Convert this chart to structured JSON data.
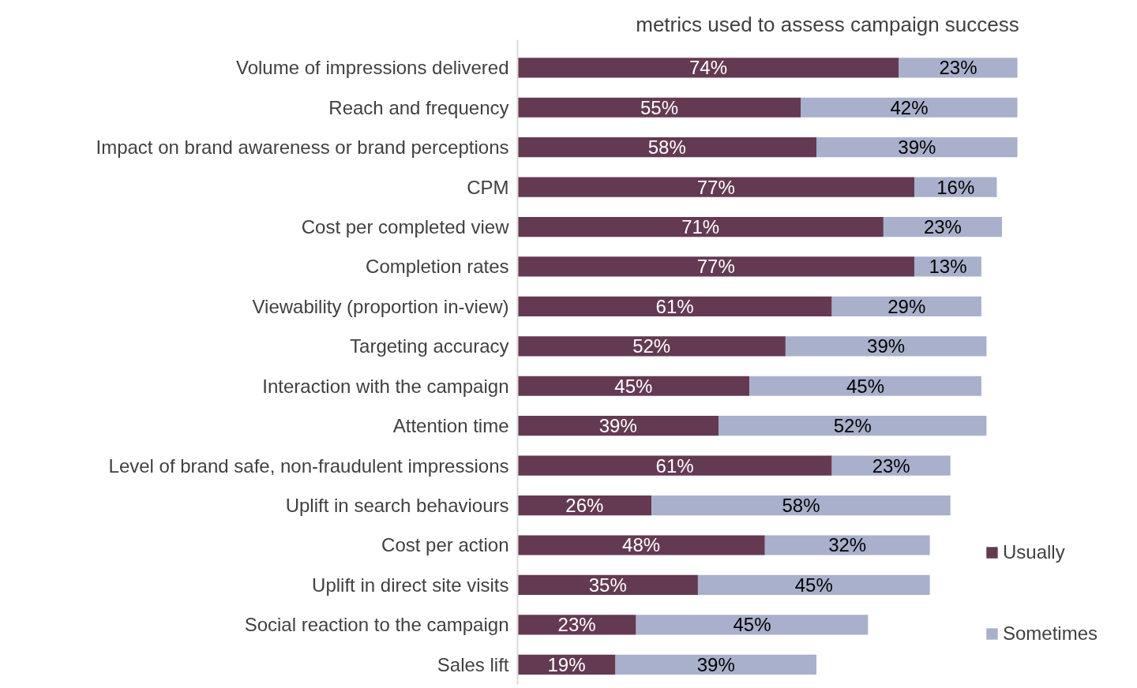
{
  "chart_data": {
    "type": "bar",
    "orientation": "horizontal",
    "stacked": true,
    "title": "metrics used to assess campaign success",
    "categories": [
      "Volume of impressions delivered",
      "Reach and frequency",
      "Impact on brand awareness or brand perceptions",
      "CPM",
      "Cost per completed view",
      "Completion rates",
      "Viewability (proportion in-view)",
      "Targeting accuracy",
      "Interaction with the campaign",
      "Attention time",
      "Level of brand safe, non-fraudulent impressions",
      "Uplift in search behaviours",
      "Cost per action",
      "Uplift in direct site visits",
      "Social reaction to the campaign",
      "Sales lift"
    ],
    "series": [
      {
        "name": "Usually",
        "color": "#643a52",
        "values": [
          74,
          55,
          58,
          77,
          71,
          77,
          61,
          52,
          45,
          39,
          61,
          26,
          48,
          35,
          23,
          19
        ],
        "value_labels": [
          "74%",
          "55%",
          "58%",
          "77%",
          "71%",
          "77%",
          "61%",
          "52%",
          "45%",
          "39%",
          "61%",
          "26%",
          "48%",
          "35%",
          "23%",
          "19%"
        ]
      },
      {
        "name": "Sometimes",
        "color": "#a9b0cc",
        "values": [
          23,
          42,
          39,
          16,
          23,
          13,
          29,
          39,
          45,
          52,
          23,
          58,
          32,
          45,
          45,
          39
        ],
        "value_labels": [
          "23%",
          "42%",
          "39%",
          "16%",
          "23%",
          "13%",
          "29%",
          "39%",
          "45%",
          "52%",
          "23%",
          "58%",
          "32%",
          "45%",
          "45%",
          "39%"
        ]
      }
    ],
    "legend": "bottom right",
    "tick_labels": "y",
    "grid": false
  }
}
